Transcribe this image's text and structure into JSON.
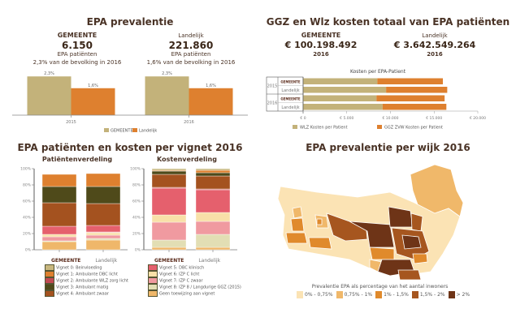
{
  "panel1": {
    "title": "EPA prevalentie",
    "left": {
      "label": "GEMEENTE",
      "value": "6.150",
      "line1": "EPA patiënten",
      "line2": "2,3% van de bevolking in 2016"
    },
    "right": {
      "label": "Landelijk",
      "value": "221.860",
      "line1": "EPA patiënten",
      "line2": "1,6% van de bevolking in 2016"
    }
  },
  "panel2": {
    "title": "GGZ en Wlz kosten totaal van EPA patiënten",
    "left": {
      "label": "GEMEENTE",
      "value": "€ 100.198.492",
      "year": "2016"
    },
    "right": {
      "label": "Landelijk",
      "value": "€ 3.642.549.264",
      "year": "2016"
    }
  },
  "panel3": {
    "title": "EPA patiënten en kosten per vignet 2016",
    "left_subtitle": "Patiëntenverdeling",
    "right_subtitle": "Kostenverdeling"
  },
  "panel4": {
    "title": "EPA prevalentie per wijk 2016",
    "legend_title": "Prevalentie EPA als percentage van het aantal inwoners",
    "legend": [
      {
        "label": "0% - 0,75%",
        "color": "#fbe3b4"
      },
      {
        "label": "0,75% - 1%",
        "color": "#f0b86a"
      },
      {
        "label": "1% - 1,5%",
        "color": "#e08a2c"
      },
      {
        "label": "1,5% - 2%",
        "color": "#a6561f"
      },
      {
        "label": "> 2%",
        "color": "#6e3417"
      }
    ]
  },
  "chart_data": [
    {
      "type": "bar",
      "title": "EPA prevalentie",
      "categories": [
        "2015",
        "2016"
      ],
      "series": [
        {
          "name": "GEMEENTE",
          "values": [
            2.3,
            2.3
          ],
          "labels": [
            "2,3%",
            "2,3%"
          ],
          "color": "#c3b27a"
        },
        {
          "name": "Landelijk",
          "values": [
            1.6,
            1.6
          ],
          "labels": [
            "1,6%",
            "1,6%"
          ],
          "color": "#de802f"
        }
      ],
      "ylim": [
        0,
        2.6
      ],
      "legend": "bottom"
    },
    {
      "type": "bar",
      "orientation": "horizontal",
      "stacked": true,
      "title": "Kosten per EPA-Patient",
      "groups": [
        "2015",
        "2015",
        "2016",
        "2016"
      ],
      "categories": [
        "GEMEENTE",
        "Landelijk",
        "GEMEENTE",
        "Landelijk"
      ],
      "series": [
        {
          "name": "WLZ Kosten per Patient",
          "values": [
            8500,
            9500,
            8400,
            9100
          ],
          "color": "#c3b27a"
        },
        {
          "name": "GGZ ZVW Kosten per Patient",
          "values": [
            7500,
            7000,
            7800,
            7300
          ],
          "color": "#de802f"
        }
      ],
      "xticks": [
        "€ 0",
        "€ 5.000",
        "€ 10.000",
        "€ 15.000",
        "€ 20.000"
      ],
      "xlim": [
        0,
        20000
      ],
      "legend": "bottom"
    },
    {
      "type": "bar",
      "stacked": true,
      "title": "Patiëntenverdeling",
      "categories": [
        "GEMEENTE",
        "Landelijk"
      ],
      "yticks": [
        "0%",
        "20%",
        "40%",
        "60%",
        "80%",
        "100%"
      ],
      "ylim": [
        0,
        100
      ],
      "series": [
        {
          "name": "Geen toewijzing aan vignet",
          "values": [
            10,
            12
          ],
          "color": "#efb76a"
        },
        {
          "name": "Vignet 8: IZP 8 / Langdurige GGZ (2015)",
          "values": [
            1,
            2
          ],
          "color": "#e2deb4"
        },
        {
          "name": "Vignet 7: IZP C zwaar",
          "values": [
            5,
            4
          ],
          "color": "#f09aa0"
        },
        {
          "name": "Vignet 6: IZP C licht",
          "values": [
            3,
            3
          ],
          "color": "#f8e0a8"
        },
        {
          "name": "Vignet 5: DBC klinisch",
          "values": [
            0,
            1
          ],
          "color": "#f5b8b0"
        },
        {
          "name": "Vignet 2: Ambulante WLZ zorg licht",
          "values": [
            10,
            8
          ],
          "color": "#e5606d"
        },
        {
          "name": "Vignet 4: Ambulant zwaar",
          "values": [
            29,
            27
          ],
          "color": "#a4521f"
        },
        {
          "name": "Vignet 3: Ambulant matig",
          "values": [
            20,
            21
          ],
          "color": "#4f4a1a"
        },
        {
          "name": "Vignet 1: Ambulante DBC licht",
          "values": [
            15,
            16
          ],
          "color": "#de802f"
        },
        {
          "name": "Vignet 0: Beinvloeding",
          "values": [
            0,
            0
          ],
          "color": "#c8b77e"
        }
      ]
    },
    {
      "type": "bar",
      "stacked": true,
      "title": "Kostenverdeling",
      "categories": [
        "GEMEENTE",
        "Landelijk"
      ],
      "yticks": [
        "0%",
        "20%",
        "40%",
        "60%",
        "80%",
        "100%"
      ],
      "ylim": [
        0,
        100
      ],
      "series": [
        {
          "name": "Geen toewijzing aan vignet",
          "values": [
            3,
            3
          ],
          "color": "#efb76a"
        },
        {
          "name": "Vignet 8: IZP 8 / Langdurige GGZ (2015)",
          "values": [
            9,
            16
          ],
          "color": "#e2deb4"
        },
        {
          "name": "Vignet 7: IZP C zwaar",
          "values": [
            22,
            16
          ],
          "color": "#f09aa0"
        },
        {
          "name": "Vignet 6: IZP C licht",
          "values": [
            9,
            11
          ],
          "color": "#f8e0a8"
        },
        {
          "name": "Vignet 5: DBC klinisch",
          "values": [
            33,
            28
          ],
          "color": "#e5606d"
        },
        {
          "name": "Vignet 2: Ambulante WLZ zorg licht",
          "values": [
            1,
            1
          ],
          "color": "#c95a50"
        },
        {
          "name": "Vignet 4: Ambulant zwaar",
          "values": [
            16,
            16
          ],
          "color": "#a4521f"
        },
        {
          "name": "Vignet 3: Ambulant matig",
          "values": [
            4,
            4
          ],
          "color": "#4f4a1a"
        },
        {
          "name": "Vignet 1: Ambulante DBC licht",
          "values": [
            1,
            3
          ],
          "color": "#de802f"
        },
        {
          "name": "Vignet 0: Beinvloeding",
          "values": [
            2,
            2
          ],
          "color": "#c8b77e"
        }
      ]
    }
  ],
  "vignet_legend_left": {
    "header": "GEMEENTE",
    "header2": "Landelijk",
    "items": [
      {
        "label": "Vignet 0: Beinvloeding",
        "color": "#c8b77e"
      },
      {
        "label": "Vignet 1: Ambulante DBC licht",
        "color": "#de802f"
      },
      {
        "label": "Vignet 2: Ambulante WLZ zorg licht",
        "color": "#c24a52"
      },
      {
        "label": "Vignet 3: Ambulant matig",
        "color": "#4f4a1a"
      },
      {
        "label": "Vignet 4: Ambulant zwaar",
        "color": "#a4521f"
      }
    ]
  },
  "vignet_legend_right": {
    "header": "GEMEENTE",
    "header2": "Landelijk",
    "items": [
      {
        "label": "Vignet 5: DBC klinisch",
        "color": "#e5606d"
      },
      {
        "label": "Vignet 6: IZP C licht",
        "color": "#f8e0a8"
      },
      {
        "label": "Vignet 7: IZP C zwaar",
        "color": "#f09aa0"
      },
      {
        "label": "Vignet 8: IZP 8 / Langdurige GGZ (2015)",
        "color": "#e2deb4"
      },
      {
        "label": "Geen toewijzing aan vignet",
        "color": "#efb76a"
      }
    ]
  }
}
